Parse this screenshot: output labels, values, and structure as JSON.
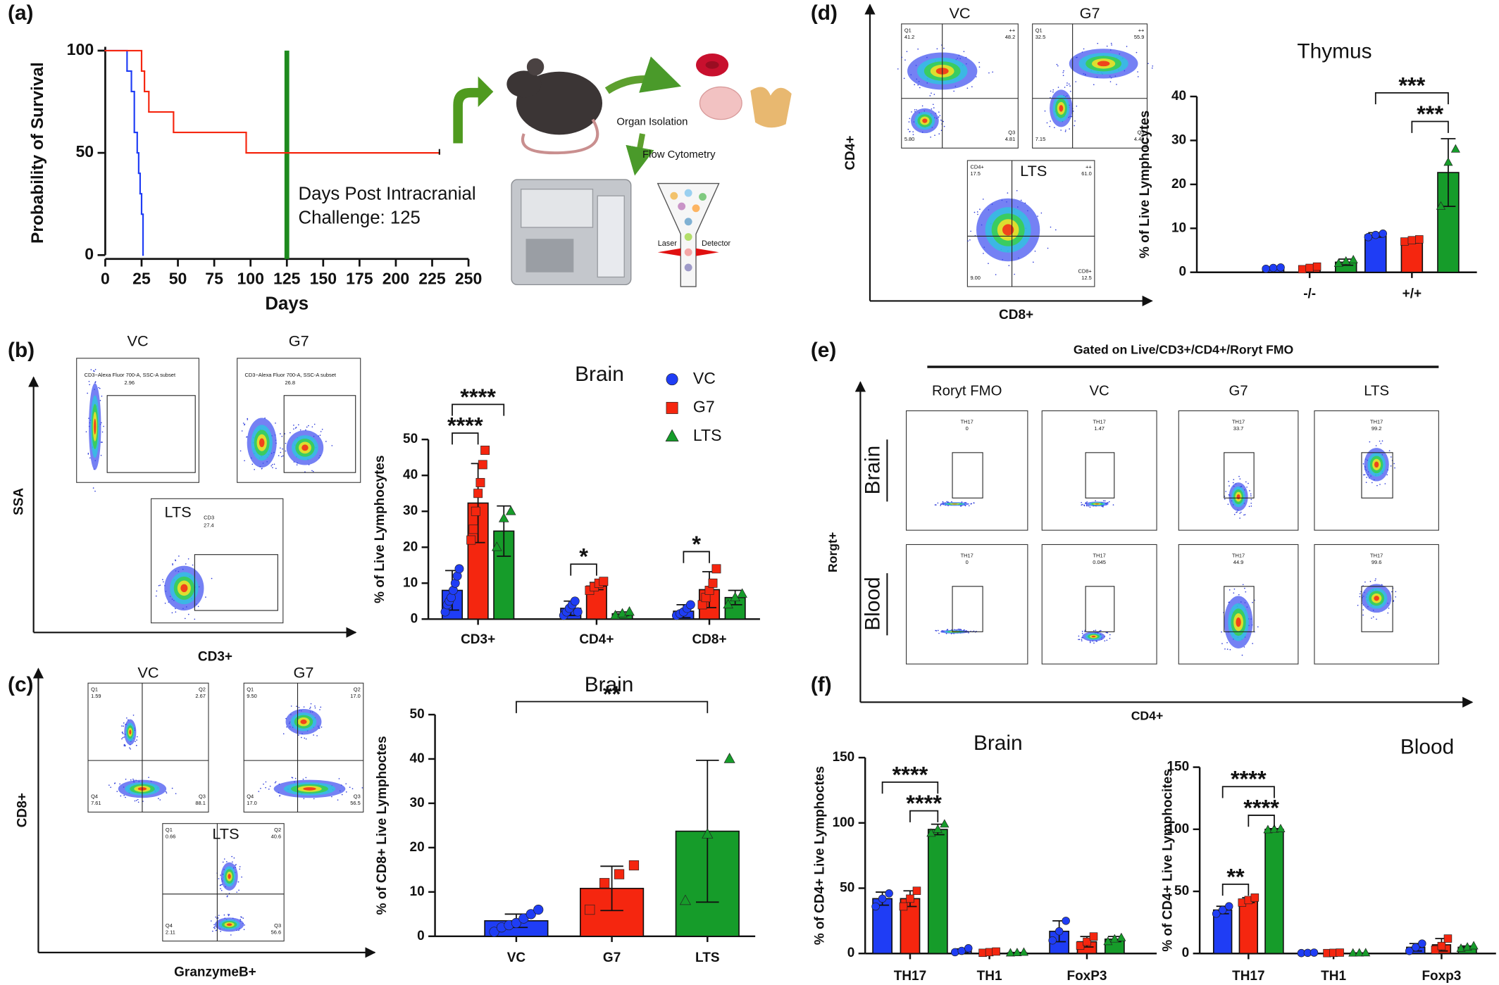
{
  "panel_labels": [
    "(a)",
    "(b)",
    "(c)",
    "(d)",
    "(e)",
    "(f)"
  ],
  "illustration": {
    "labels": [
      "Organ Isolation",
      "Flow Cytometry",
      "Laser",
      "Detector"
    ]
  },
  "flow_b": {
    "y_axis": "SSA",
    "x_axis": "CD3+",
    "plots": [
      {
        "title": "VC",
        "gate": "CD3−Alexa Fluor   700-A, SSC-A subset",
        "freq": "2.96"
      },
      {
        "title": "G7",
        "gate": "CD3−Alexa Fluor   700-A, SSC-A subset",
        "freq": "26.8"
      },
      {
        "title": "LTS",
        "gate": "CD3",
        "freq": "27.4"
      }
    ]
  },
  "flow_c": {
    "y_axis": "CD8+",
    "x_axis": "GranzymeB+",
    "plots": [
      {
        "title": "VC",
        "quadrants": [
          {
            "label": "Q1",
            "value": "1.59"
          },
          {
            "label": "Q2",
            "value": "2.67"
          },
          {
            "label": "Q4",
            "value": "7.61"
          },
          {
            "label": "Q3",
            "value": "88.1"
          }
        ]
      },
      {
        "title": "G7",
        "quadrants": [
          {
            "label": "Q1",
            "value": "9.50"
          },
          {
            "label": "Q2",
            "value": "17.0"
          },
          {
            "label": "Q4",
            "value": "17.0"
          },
          {
            "label": "Q3",
            "value": "56.5"
          }
        ]
      },
      {
        "title": "LTS",
        "quadrants": [
          {
            "label": "Q1",
            "value": "0.66"
          },
          {
            "label": "Q2",
            "value": "40.6"
          },
          {
            "label": "Q4",
            "value": "2.11"
          },
          {
            "label": "Q3",
            "value": "56.6"
          }
        ]
      }
    ]
  },
  "flow_d": {
    "y_axis": "CD4+",
    "x_axis": "CD8+",
    "plots": [
      {
        "title": "VC",
        "quadrants": [
          {
            "label": "Q1",
            "value": "41.2"
          },
          {
            "label": "++",
            "value": "48.2"
          },
          {
            "value": "5.80"
          },
          {
            "label": "Q3",
            "value": "4.81"
          }
        ]
      },
      {
        "title": "G7",
        "quadrants": [
          {
            "label": "Q1",
            "value": "32.5"
          },
          {
            "label": "++",
            "value": "55.9"
          },
          {
            "value": "7.15"
          },
          {
            "label": "Q3",
            "value": "4.48"
          }
        ]
      },
      {
        "title": "LTS",
        "quadrants": [
          {
            "label": "CD4+",
            "value": "17.5"
          },
          {
            "label": "++",
            "value": "61.0"
          },
          {
            "value": "9.00"
          },
          {
            "label": "CD8+",
            "value": "12.5"
          }
        ]
      }
    ]
  },
  "flow_e": {
    "header": "Gated on Live/CD3+/CD4+/Roryt FMO",
    "y_axis": "Rorgt+",
    "x_axis": "CD4+",
    "columns": [
      "Roryt FMO",
      "VC",
      "G7",
      "LTS"
    ],
    "rows": [
      {
        "name": "Brain",
        "gates": [
          {
            "label": "TH17",
            "value": "0"
          },
          {
            "label": "TH17",
            "value": "1.47"
          },
          {
            "label": "TH17",
            "value": "33.7"
          },
          {
            "label": "TH17",
            "value": "99.2"
          }
        ]
      },
      {
        "name": "Blood",
        "gates": [
          {
            "label": "TH17",
            "value": "0"
          },
          {
            "label": "TH17",
            "value": "0.045"
          },
          {
            "label": "TH17",
            "value": "44.9"
          },
          {
            "label": "TH17",
            "value": "99.6"
          }
        ]
      }
    ]
  },
  "chart_data": [
    {
      "type": "line",
      "step": true,
      "ylabel": "Probability of Survival",
      "xlabel": "Days",
      "xlim": [
        0,
        250
      ],
      "ylim": [
        0,
        100
      ],
      "xticks": [
        0,
        25,
        50,
        75,
        100,
        125,
        150,
        175,
        200,
        225,
        250
      ],
      "yticks": [
        0,
        50,
        100
      ],
      "series": [
        {
          "color": "#1f3df5",
          "x": [
            0,
            15,
            18,
            20,
            22,
            23,
            24,
            25,
            26
          ],
          "values": [
            100,
            90,
            80,
            60,
            50,
            40,
            30,
            20,
            0
          ]
        },
        {
          "color": "#f5260f",
          "x": [
            0,
            25,
            27,
            30,
            47,
            97,
            230
          ],
          "values": [
            100,
            90,
            80,
            70,
            60,
            50,
            50
          ]
        }
      ],
      "vline": {
        "x": 125,
        "color": "#1e8a1e"
      },
      "annotation": [
        "Days Post Intracranial",
        "Challenge: 125"
      ]
    },
    {
      "type": "bar",
      "title": "Brain",
      "ylabel": "% of Live Lymphocytes",
      "categories": [
        "CD3+",
        "CD4+",
        "CD8+"
      ],
      "ylim": [
        0,
        50
      ],
      "yticks": [
        0,
        10,
        20,
        30,
        40,
        50
      ],
      "legend": true,
      "series": [
        {
          "name": "VC",
          "color": "#1f3df5",
          "marker": "circle",
          "values": [
            8,
            3,
            2.2
          ],
          "errors": [
            5.5,
            2,
            1.8
          ],
          "points": [
            [
              2,
              4,
              5,
              6,
              8,
              10,
              12,
              14
            ],
            [
              1,
              2,
              3,
              4,
              5,
              2
            ],
            [
              1,
              1.5,
              2,
              3,
              4
            ]
          ]
        },
        {
          "name": "G7",
          "color": "#f5260f",
          "marker": "square",
          "values": [
            32.3,
            9.2,
            8.2
          ],
          "errors": [
            11,
            1,
            5
          ],
          "points": [
            [
              22,
              25,
              30,
              35,
              38,
              43,
              47
            ],
            [
              8,
              9,
              10,
              10.5
            ],
            [
              4,
              6,
              8,
              10,
              14
            ]
          ]
        },
        {
          "name": "LTS",
          "color": "#169c2a",
          "marker": "triangle",
          "values": [
            24.5,
            1.5,
            6
          ],
          "errors": [
            7,
            0.5,
            2
          ],
          "points": [
            [
              20,
              28,
              30
            ],
            [
              1,
              1.5,
              2
            ],
            [
              4,
              6,
              7
            ]
          ]
        }
      ],
      "significance": [
        {
          "text": "****",
          "category": "CD3+",
          "from": "VC",
          "to": "G7"
        },
        {
          "text": "****",
          "category": "CD3+",
          "from": "VC",
          "to": "LTS"
        },
        {
          "text": "*",
          "category": "CD4+",
          "from": "VC",
          "to": "G7"
        },
        {
          "text": "*",
          "category": "CD8+",
          "from": "VC",
          "to": "G7"
        }
      ]
    },
    {
      "type": "bar",
      "title": "Brain",
      "ylabel": "% of CD8+ Live Lymphoctes",
      "categories": [
        "VC",
        "G7",
        "LTS"
      ],
      "ylim": [
        0,
        50
      ],
      "yticks": [
        0,
        10,
        20,
        30,
        40,
        50
      ],
      "values": [
        3.5,
        10.8,
        23.7
      ],
      "errors": [
        1.5,
        5,
        16
      ],
      "points": [
        [
          1,
          2,
          2.5,
          3,
          4,
          5,
          6
        ],
        [
          6,
          12,
          14,
          16
        ],
        [
          8,
          23,
          40
        ]
      ],
      "colors": [
        "#1f3df5",
        "#f5260f",
        "#169c2a"
      ],
      "markers": [
        "circle",
        "square",
        "triangle"
      ],
      "significance": [
        {
          "text": "**",
          "from": "VC",
          "to": "LTS"
        }
      ]
    },
    {
      "type": "bar",
      "title": "Thymus",
      "ylabel": "% of Live Lymphocytes",
      "categories": [
        "-/-",
        "+/+"
      ],
      "ylim": [
        0,
        40
      ],
      "yticks": [
        0,
        10,
        20,
        30,
        40
      ],
      "series": [
        {
          "name": "VC",
          "color": "#1f3df5",
          "marker": "circle",
          "values": [
            1,
            8.5
          ],
          "errors": [
            0.2,
            0.5
          ],
          "points": [
            [
              0.8,
              1,
              1.1
            ],
            [
              8,
              8.5,
              8.8
            ]
          ]
        },
        {
          "name": "G7",
          "color": "#f5260f",
          "marker": "square",
          "values": [
            1,
            7.2
          ],
          "errors": [
            0.4,
            0.5
          ],
          "points": [
            [
              0.7,
              1,
              1.3
            ],
            [
              7,
              7.3,
              7.5
            ]
          ]
        },
        {
          "name": "LTS",
          "color": "#169c2a",
          "marker": "triangle",
          "values": [
            2.3,
            22.7
          ],
          "errors": [
            0.7,
            7.7
          ],
          "points": [
            [
              2,
              2.5,
              2.8
            ],
            [
              15,
              25,
              28
            ]
          ]
        }
      ],
      "significance": [
        {
          "text": "***",
          "category": "+/+",
          "from": "G7",
          "to": "LTS"
        },
        {
          "text": "***",
          "category": "+/+",
          "from": "VC",
          "to": "LTS"
        }
      ]
    },
    {
      "type": "bar",
      "title": "Brain",
      "ylabel": "% of CD4+ Live Lymphoctes",
      "categories": [
        "TH17",
        "TH1",
        "FoxP3"
      ],
      "ylim": [
        0,
        150
      ],
      "yticks": [
        0,
        50,
        100,
        150
      ],
      "series": [
        {
          "name": "VC",
          "color": "#1f3df5",
          "marker": "circle",
          "values": [
            42,
            2,
            17
          ],
          "errors": [
            5,
            1.5,
            8
          ],
          "points": [
            [
              36,
              42,
              46
            ],
            [
              1,
              2,
              4
            ],
            [
              10,
              17,
              25
            ]
          ]
        },
        {
          "name": "G7",
          "color": "#f5260f",
          "marker": "square",
          "values": [
            42,
            1,
            9
          ],
          "errors": [
            6,
            0.5,
            4
          ],
          "points": [
            [
              36,
              42,
              48
            ],
            [
              0.5,
              1,
              1.5
            ],
            [
              6,
              9,
              13
            ]
          ]
        },
        {
          "name": "LTS",
          "color": "#169c2a",
          "marker": "triangle",
          "values": [
            95,
            0.5,
            11
          ],
          "errors": [
            4,
            0.3,
            2
          ],
          "points": [
            [
              92,
              95,
              99
            ],
            [
              0.3,
              0.5,
              0.8
            ],
            [
              9,
              11,
              12
            ]
          ]
        }
      ],
      "significance": [
        {
          "text": "****",
          "category": "TH17",
          "from": "G7",
          "to": "LTS"
        },
        {
          "text": "****",
          "category": "TH17",
          "from": "VC",
          "to": "LTS"
        }
      ]
    },
    {
      "type": "bar",
      "title": "Blood",
      "ylabel": "% of CD4+ Live Lymphocites",
      "categories": [
        "TH17",
        "TH1",
        "Foxp3"
      ],
      "ylim": [
        0,
        150
      ],
      "yticks": [
        0,
        50,
        100,
        150
      ],
      "series": [
        {
          "name": "VC",
          "color": "#1f3df5",
          "marker": "circle",
          "values": [
            35,
            0.5,
            5
          ],
          "errors": [
            3,
            0.3,
            3
          ],
          "points": [
            [
              32,
              35,
              38
            ],
            [
              0.3,
              0.5,
              0.7
            ],
            [
              2,
              5,
              8
            ]
          ]
        },
        {
          "name": "G7",
          "color": "#f5260f",
          "marker": "square",
          "values": [
            43,
            0.5,
            7
          ],
          "errors": [
            2,
            0.3,
            5
          ],
          "points": [
            [
              41,
              43,
              45
            ],
            [
              0.3,
              0.5,
              0.7
            ],
            [
              3,
              6,
              12
            ]
          ]
        },
        {
          "name": "LTS",
          "color": "#169c2a",
          "marker": "triangle",
          "values": [
            100,
            0.3,
            5
          ],
          "errors": [
            0.5,
            0.2,
            1
          ],
          "points": [
            [
              99.5,
              100,
              100.3
            ],
            [
              0.2,
              0.3,
              0.4
            ],
            [
              4,
              5,
              6
            ]
          ]
        }
      ],
      "significance": [
        {
          "text": "**",
          "category": "TH17",
          "from": "VC",
          "to": "G7"
        },
        {
          "text": "****",
          "category": "TH17",
          "from": "G7",
          "to": "LTS"
        },
        {
          "text": "****",
          "category": "TH17",
          "from": "VC",
          "to": "LTS"
        }
      ]
    }
  ]
}
